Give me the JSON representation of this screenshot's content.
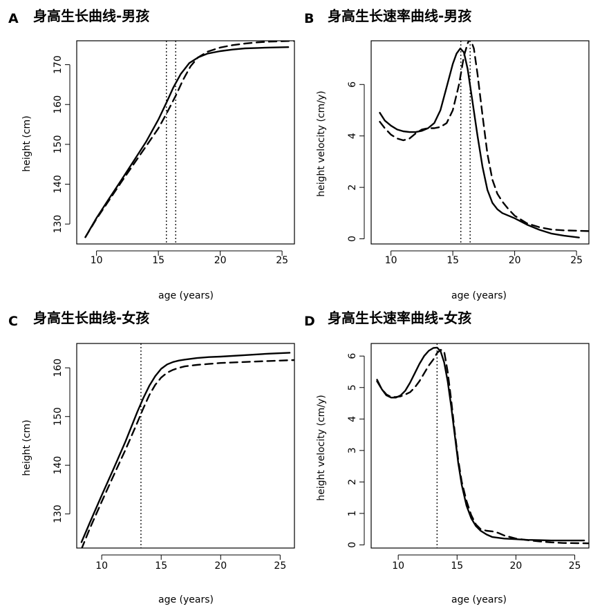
{
  "chart_data": [
    {
      "panel": "A",
      "type": "line",
      "title": "身高生长曲线-男孩",
      "xlabel": "age (years)",
      "ylabel": "height (cm)",
      "xlim": [
        8.4,
        26.0
      ],
      "ylim": [
        125.0,
        176.0
      ],
      "xticks": [
        10,
        15,
        20,
        25
      ],
      "yticks": [
        130,
        140,
        150,
        160,
        170
      ],
      "grid": false,
      "vlines": [
        {
          "x": 15.65,
          "style": "dotted"
        },
        {
          "x": 16.4,
          "style": "dotted"
        }
      ],
      "series": [
        {
          "name": "solid",
          "style": "solid",
          "x": [
            9.1,
            10,
            11,
            12,
            13,
            14,
            15,
            15.7,
            16.2,
            16.8,
            17.5,
            18.2,
            19,
            20,
            21,
            22,
            23,
            24,
            25.5
          ],
          "values": [
            126.7,
            131.5,
            136.3,
            141.0,
            145.8,
            150.6,
            156.2,
            160.8,
            164.2,
            167.6,
            170.4,
            171.8,
            172.8,
            173.4,
            173.8,
            174.1,
            174.2,
            174.3,
            174.4
          ]
        },
        {
          "name": "dashed",
          "style": "dashed",
          "x": [
            9.1,
            10,
            11,
            12,
            13,
            14,
            15,
            15.7,
            16.4,
            17,
            17.6,
            18.2,
            19,
            20,
            21,
            22,
            23,
            24,
            26
          ],
          "values": [
            126.7,
            131.3,
            135.9,
            140.5,
            145.0,
            149.5,
            154.0,
            158.0,
            162.2,
            166.2,
            169.6,
            171.8,
            173.3,
            174.3,
            174.9,
            175.3,
            175.6,
            175.8,
            176.0
          ]
        }
      ]
    },
    {
      "panel": "B",
      "type": "line",
      "title": "身高生长速率曲线-男孩",
      "xlabel": "age (years)",
      "ylabel": "height velocity (cm/y)",
      "xlim": [
        8.4,
        26.0
      ],
      "ylim": [
        -0.2,
        7.7
      ],
      "xticks": [
        10,
        15,
        20,
        25
      ],
      "yticks": [
        0,
        2,
        4,
        6
      ],
      "grid": false,
      "vlines": [
        {
          "x": 15.65,
          "style": "dotted"
        },
        {
          "x": 16.4,
          "style": "dotted"
        }
      ],
      "series": [
        {
          "name": "solid",
          "style": "solid",
          "x": [
            9.1,
            9.5,
            10,
            10.5,
            11,
            11.5,
            12,
            12.5,
            13,
            13.5,
            14,
            14.5,
            15,
            15.3,
            15.6,
            15.9,
            16.2,
            16.6,
            17,
            17.4,
            17.8,
            18.2,
            18.6,
            19,
            20,
            21,
            22,
            23,
            24,
            25.2
          ],
          "values": [
            4.9,
            4.6,
            4.4,
            4.25,
            4.18,
            4.15,
            4.15,
            4.2,
            4.3,
            4.5,
            5.0,
            5.9,
            6.8,
            7.2,
            7.4,
            7.25,
            6.6,
            5.3,
            4.0,
            2.8,
            1.9,
            1.4,
            1.15,
            1.0,
            0.8,
            0.55,
            0.35,
            0.2,
            0.12,
            0.05
          ]
        },
        {
          "name": "dashed",
          "style": "dashed",
          "x": [
            9.1,
            9.5,
            10,
            10.5,
            11,
            11.5,
            12,
            12.5,
            13,
            13.5,
            14,
            14.5,
            15,
            15.5,
            15.9,
            16.2,
            16.4,
            16.7,
            17,
            17.4,
            17.8,
            18.2,
            18.6,
            19,
            19.5,
            20,
            21,
            22,
            23,
            24,
            26
          ],
          "values": [
            4.55,
            4.3,
            4.05,
            3.9,
            3.83,
            3.9,
            4.1,
            4.25,
            4.3,
            4.3,
            4.35,
            4.5,
            5.0,
            6.0,
            7.1,
            7.6,
            7.8,
            7.4,
            6.4,
            4.8,
            3.3,
            2.3,
            1.75,
            1.45,
            1.15,
            0.9,
            0.6,
            0.45,
            0.36,
            0.33,
            0.3
          ]
        }
      ]
    },
    {
      "panel": "C",
      "type": "line",
      "title": "身高生长曲线-女孩",
      "xlabel": "age (years)",
      "ylabel": "height (cm)",
      "xlim": [
        7.9,
        26.2
      ],
      "ylim": [
        123.0,
        165.0
      ],
      "xticks": [
        10,
        15,
        20,
        25
      ],
      "yticks": [
        130,
        140,
        150,
        160
      ],
      "grid": false,
      "vlines": [
        {
          "x": 13.3,
          "style": "dotted"
        }
      ],
      "series": [
        {
          "name": "solid",
          "style": "solid",
          "x": [
            8.3,
            9,
            10,
            11,
            12,
            13,
            13.5,
            14,
            14.5,
            15,
            15.5,
            16,
            16.5,
            17,
            18,
            19,
            20,
            22,
            24,
            25.8
          ],
          "values": [
            124.2,
            128.2,
            133.8,
            139.3,
            144.9,
            151.0,
            153.8,
            156.3,
            158.3,
            159.8,
            160.7,
            161.2,
            161.5,
            161.7,
            162.0,
            162.2,
            162.3,
            162.6,
            162.9,
            163.1
          ]
        },
        {
          "name": "dashed",
          "style": "dashed",
          "x": [
            8.3,
            9,
            10,
            11,
            12,
            13,
            13.5,
            14,
            14.5,
            15,
            15.5,
            16,
            16.5,
            17,
            18,
            19,
            20,
            22,
            24,
            26.2
          ],
          "values": [
            122.8,
            127.0,
            132.5,
            137.9,
            143.2,
            148.8,
            151.7,
            154.4,
            156.5,
            158.0,
            159.0,
            159.6,
            160.0,
            160.3,
            160.6,
            160.8,
            161.0,
            161.2,
            161.4,
            161.6
          ]
        }
      ]
    },
    {
      "panel": "D",
      "type": "line",
      "title": "身高生长速率曲线-女孩",
      "xlabel": "age (years)",
      "ylabel": "height velocity (cm/y)",
      "xlim": [
        7.7,
        26.2
      ],
      "ylim": [
        -0.1,
        6.4
      ],
      "xticks": [
        10,
        15,
        20,
        25
      ],
      "yticks": [
        0,
        1,
        2,
        3,
        4,
        5,
        6
      ],
      "grid": false,
      "vlines": [
        {
          "x": 13.3,
          "style": "dotted"
        }
      ],
      "series": [
        {
          "name": "solid",
          "style": "solid",
          "x": [
            8.2,
            8.6,
            9,
            9.4,
            9.8,
            10.2,
            10.6,
            11,
            11.4,
            11.8,
            12.2,
            12.6,
            13,
            13.3,
            13.6,
            13.9,
            14.2,
            14.5,
            14.8,
            15.1,
            15.4,
            15.8,
            16.2,
            16.6,
            17,
            17.5,
            18,
            19,
            20,
            21,
            22,
            23,
            24,
            25.8
          ],
          "values": [
            5.25,
            4.95,
            4.75,
            4.68,
            4.68,
            4.75,
            4.9,
            5.15,
            5.45,
            5.75,
            6.0,
            6.17,
            6.26,
            6.27,
            6.15,
            5.8,
            5.2,
            4.4,
            3.5,
            2.6,
            1.9,
            1.25,
            0.85,
            0.6,
            0.45,
            0.33,
            0.25,
            0.2,
            0.18,
            0.16,
            0.15,
            0.14,
            0.14,
            0.14
          ]
        },
        {
          "name": "dashed",
          "style": "dashed",
          "x": [
            8.2,
            8.6,
            9,
            9.4,
            9.8,
            10.2,
            10.6,
            11,
            11.4,
            11.8,
            12.2,
            12.6,
            13,
            13.3,
            13.6,
            13.9,
            14.2,
            14.5,
            14.8,
            15.1,
            15.4,
            15.8,
            16.2,
            16.6,
            17,
            17.5,
            18,
            18.5,
            19,
            20,
            21,
            22,
            23,
            24,
            26.2
          ],
          "values": [
            5.2,
            4.95,
            4.78,
            4.7,
            4.7,
            4.72,
            4.78,
            4.85,
            5.0,
            5.2,
            5.45,
            5.7,
            5.9,
            6.1,
            6.2,
            6.15,
            5.5,
            4.6,
            3.6,
            2.7,
            2.0,
            1.4,
            0.95,
            0.65,
            0.5,
            0.45,
            0.43,
            0.38,
            0.3,
            0.2,
            0.15,
            0.11,
            0.08,
            0.06,
            0.05
          ]
        }
      ]
    }
  ]
}
